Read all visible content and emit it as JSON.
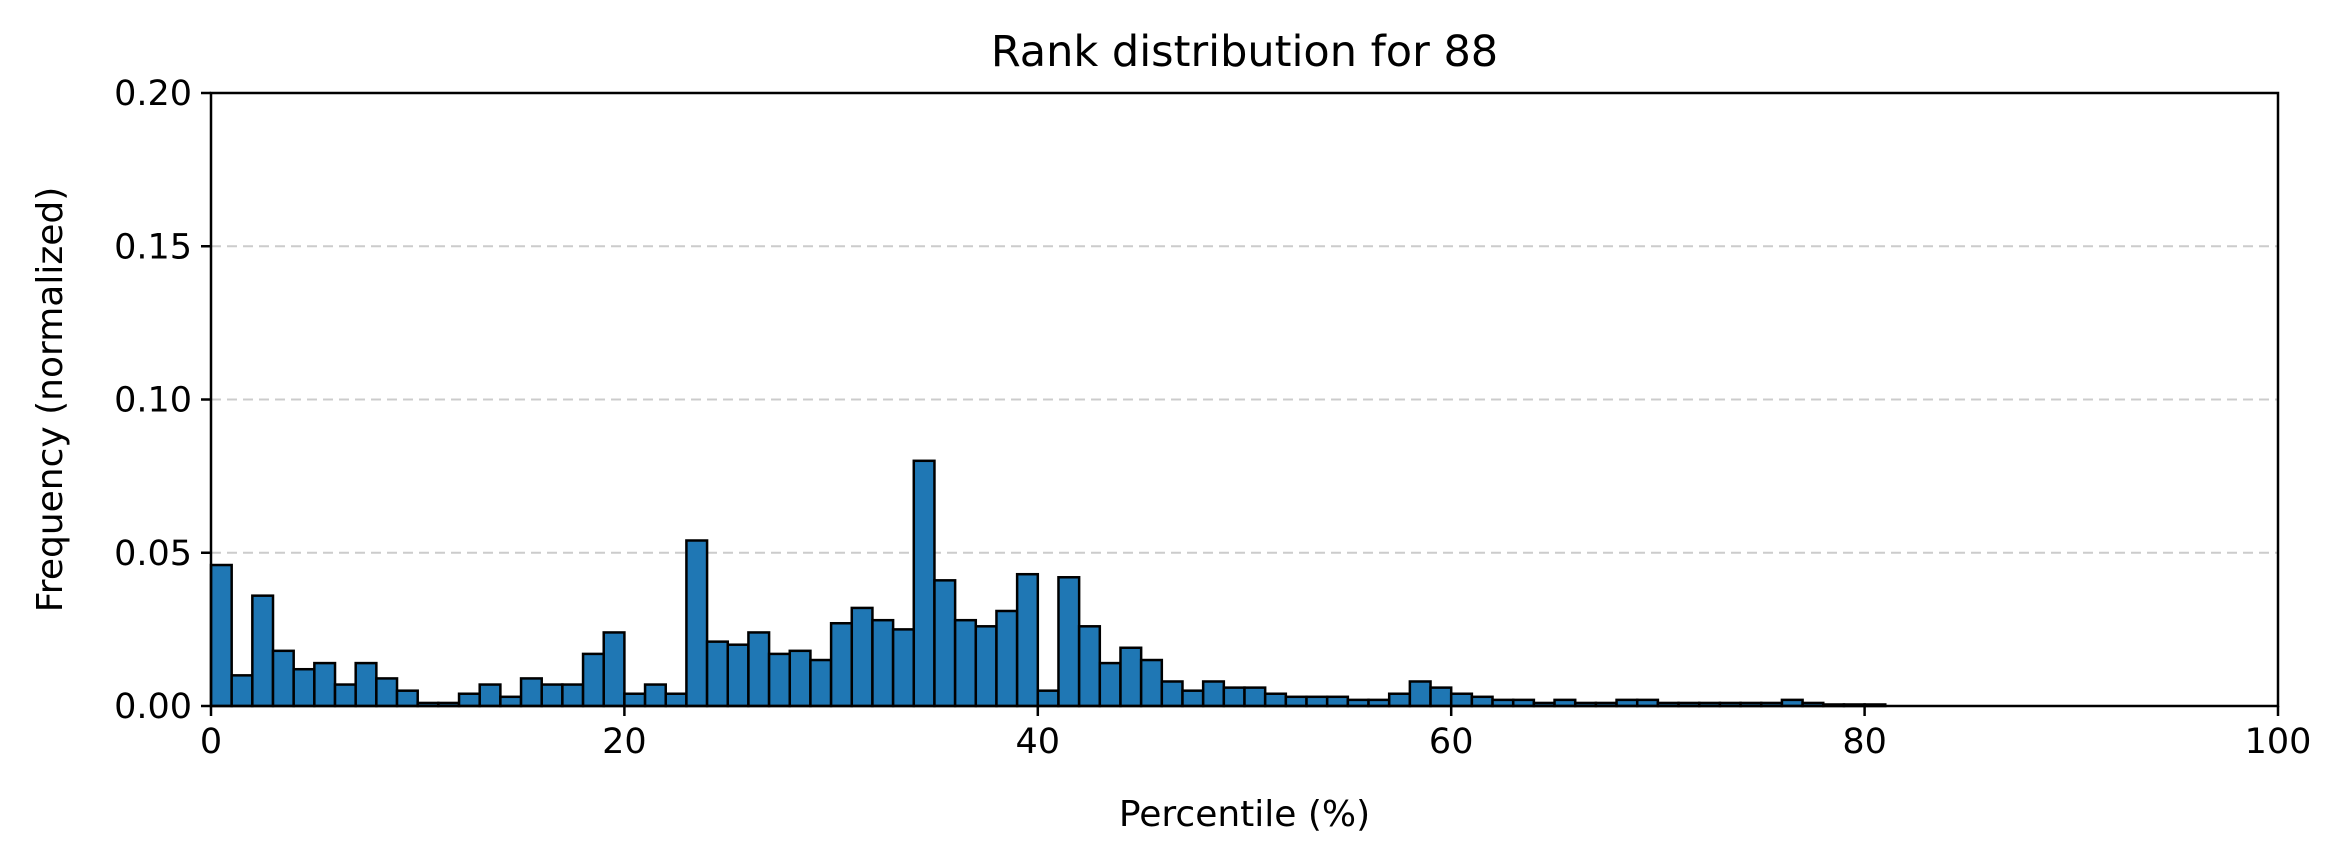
{
  "chart_data": {
    "type": "bar",
    "title": "Rank distribution for 88",
    "xlabel": "Percentile (%)",
    "ylabel": "Frequency (normalized)",
    "xlim": [
      0,
      100
    ],
    "ylim": [
      0,
      0.2
    ],
    "x_ticks": [
      0,
      20,
      40,
      60,
      80,
      100
    ],
    "y_ticks": [
      0.0,
      0.05,
      0.1,
      0.15,
      0.2
    ],
    "x_tick_labels": [
      "0",
      "20",
      "40",
      "60",
      "80",
      "100"
    ],
    "y_tick_labels": [
      "0.00",
      "0.05",
      "0.10",
      "0.15",
      "0.20"
    ],
    "grid": "y-dashed",
    "bar_color": "#1f77b4",
    "bin_width": 1,
    "bin_starts": [
      0,
      1,
      2,
      3,
      4,
      5,
      6,
      7,
      8,
      9,
      10,
      11,
      12,
      13,
      14,
      15,
      16,
      17,
      18,
      19,
      20,
      21,
      22,
      23,
      24,
      25,
      26,
      27,
      28,
      29,
      30,
      31,
      32,
      33,
      34,
      35,
      36,
      37,
      38,
      39,
      40,
      41,
      42,
      43,
      44,
      45,
      46,
      47,
      48,
      49,
      50,
      51,
      52,
      53,
      54,
      55,
      56,
      57,
      58,
      59,
      60,
      61,
      62,
      63,
      64,
      65,
      66,
      67,
      68,
      69,
      70,
      71,
      72,
      73,
      74,
      75,
      76,
      77,
      78,
      79,
      80
    ],
    "values": [
      0.046,
      0.01,
      0.036,
      0.018,
      0.012,
      0.014,
      0.007,
      0.014,
      0.009,
      0.005,
      0.001,
      0.001,
      0.004,
      0.007,
      0.003,
      0.009,
      0.007,
      0.007,
      0.017,
      0.024,
      0.004,
      0.007,
      0.004,
      0.054,
      0.021,
      0.02,
      0.024,
      0.017,
      0.018,
      0.015,
      0.027,
      0.032,
      0.028,
      0.025,
      0.08,
      0.041,
      0.028,
      0.026,
      0.031,
      0.043,
      0.005,
      0.042,
      0.026,
      0.014,
      0.019,
      0.015,
      0.008,
      0.005,
      0.008,
      0.006,
      0.006,
      0.004,
      0.003,
      0.003,
      0.003,
      0.002,
      0.002,
      0.004,
      0.008,
      0.006,
      0.004,
      0.003,
      0.002,
      0.002,
      0.001,
      0.002,
      0.001,
      0.001,
      0.002,
      0.002,
      0.001,
      0.001,
      0.001,
      0.001,
      0.001,
      0.001,
      0.002,
      0.001,
      0.0005,
      0.0005,
      0.0005
    ]
  }
}
